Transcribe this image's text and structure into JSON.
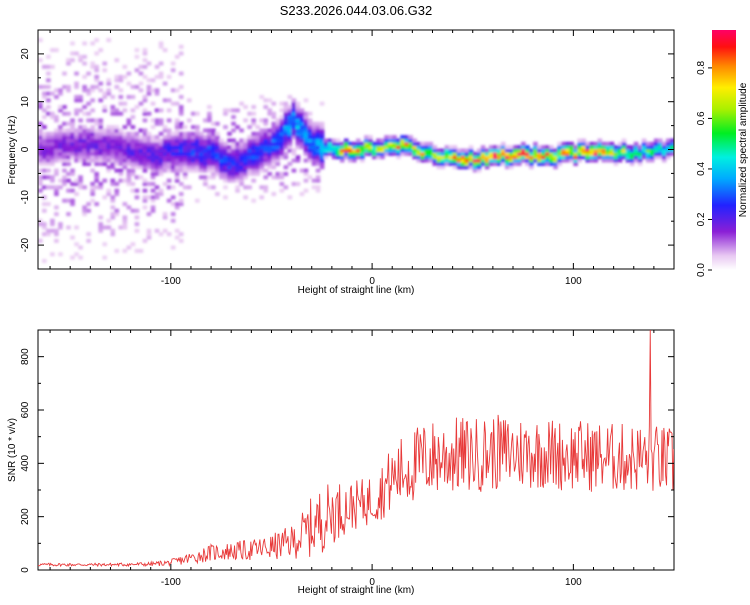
{
  "figure_title": "S233.2026.044.03.06.G32",
  "colors": {
    "signal": "#e83a3a",
    "frame": "#000000"
  },
  "chart_data": [
    {
      "type": "heatmap",
      "xlabel": "Height of straight line (km)",
      "ylabel": "Frequency (Hz)",
      "xlim": [
        -166,
        150
      ],
      "ylim": [
        -25,
        25
      ],
      "xticks": [
        -100,
        0,
        100
      ],
      "yticks": [
        -20,
        -10,
        0,
        10,
        20
      ],
      "colorbar": {
        "label": "Normalized spectral amplitude",
        "range": [
          0.0,
          0.95
        ],
        "ticks": [
          0.0,
          0.2,
          0.4,
          0.6,
          0.8
        ],
        "tick_labels": [
          "0.0",
          "0.2",
          "0.4",
          "0.6",
          "0.8"
        ],
        "colormap": "rainbow (white-violet-blue-cyan-green-yellow-orange-red-magenta)"
      },
      "ridge": [
        {
          "x": -166,
          "f": 0.0,
          "amp": 0.15
        },
        {
          "x": -140,
          "f": 1.0,
          "amp": 0.18
        },
        {
          "x": -110,
          "f": -1.5,
          "amp": 0.2
        },
        {
          "x": -85,
          "f": -0.5,
          "amp": 0.28
        },
        {
          "x": -70,
          "f": -3.0,
          "amp": 0.25
        },
        {
          "x": -50,
          "f": 0.5,
          "amp": 0.3
        },
        {
          "x": -40,
          "f": 6.0,
          "amp": 0.4
        },
        {
          "x": -30,
          "f": 1.0,
          "amp": 0.35
        },
        {
          "x": -20,
          "f": -0.5,
          "amp": 0.55
        },
        {
          "x": -15,
          "f": -0.5,
          "amp": 0.88
        },
        {
          "x": 0,
          "f": 0.0,
          "amp": 0.6
        },
        {
          "x": 15,
          "f": 0.5,
          "amp": 0.8
        },
        {
          "x": 30,
          "f": -1.5,
          "amp": 0.65
        },
        {
          "x": 45,
          "f": -2.5,
          "amp": 0.85
        },
        {
          "x": 60,
          "f": -1.5,
          "amp": 0.9
        },
        {
          "x": 75,
          "f": -1.5,
          "amp": 0.88
        },
        {
          "x": 90,
          "f": -1.5,
          "amp": 0.8
        },
        {
          "x": 110,
          "f": -0.5,
          "amp": 0.86
        },
        {
          "x": 125,
          "f": -1.0,
          "amp": 0.6
        },
        {
          "x": 140,
          "f": -0.5,
          "amp": 0.55
        },
        {
          "x": 150,
          "f": 0.0,
          "amp": 0.45
        }
      ]
    },
    {
      "type": "line",
      "xlabel": "Height of straight line (km)",
      "ylabel": "SNR (10 * v/v)",
      "xlim": [
        -166,
        150
      ],
      "ylim": [
        0,
        900
      ],
      "xticks": [
        -100,
        0,
        100
      ],
      "yticks": [
        0,
        200,
        400,
        600,
        800
      ],
      "series": [
        {
          "name": "SNR",
          "x": [
            -166,
            -150,
            -130,
            -110,
            -100,
            -90,
            -80,
            -70,
            -60,
            -50,
            -40,
            -35,
            -30,
            -25,
            -20,
            -15,
            -10,
            -5,
            0,
            5,
            10,
            15,
            20,
            25,
            30,
            35,
            40,
            45,
            50,
            55,
            60,
            65,
            70,
            75,
            80,
            85,
            90,
            95,
            100,
            105,
            110,
            115,
            120,
            125,
            130,
            135,
            138,
            140,
            145,
            150
          ],
          "values": [
            20,
            20,
            20,
            22,
            28,
            45,
            65,
            70,
            75,
            85,
            105,
            130,
            160,
            190,
            215,
            230,
            240,
            250,
            265,
            300,
            340,
            370,
            390,
            410,
            420,
            425,
            430,
            430,
            430,
            435,
            440,
            440,
            440,
            440,
            440,
            440,
            435,
            430,
            430,
            430,
            425,
            425,
            420,
            420,
            420,
            420,
            420,
            415,
            410,
            400
          ],
          "spread": [
            10,
            10,
            10,
            14,
            20,
            40,
            55,
            60,
            70,
            85,
            110,
            150,
            200,
            220,
            210,
            180,
            160,
            160,
            170,
            190,
            220,
            240,
            250,
            250,
            255,
            255,
            255,
            255,
            250,
            250,
            250,
            250,
            245,
            245,
            240,
            240,
            240,
            235,
            235,
            235,
            235,
            235,
            230,
            230,
            230,
            230,
            230,
            230,
            230,
            230
          ]
        }
      ],
      "peak": {
        "x": 138,
        "value": 900
      }
    }
  ]
}
